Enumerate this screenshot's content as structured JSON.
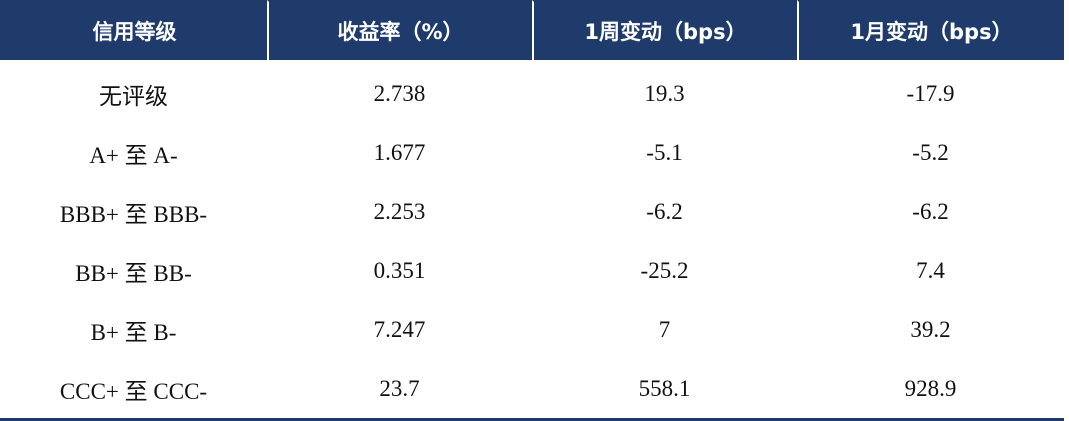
{
  "table": {
    "headers": [
      "信用等级",
      "收益率（%）",
      "1周变动（bps）",
      "1月变动（bps）"
    ],
    "rows": [
      {
        "grade": "无评级",
        "yield": "2.738",
        "week_change": "19.3",
        "month_change": "-17.9"
      },
      {
        "grade": "A+ 至 A-",
        "yield": "1.677",
        "week_change": "-5.1",
        "month_change": "-5.2"
      },
      {
        "grade": "BBB+ 至 BBB-",
        "yield": "2.253",
        "week_change": "-6.2",
        "month_change": "-6.2"
      },
      {
        "grade": "BB+ 至 BB-",
        "yield": "0.351",
        "week_change": "-25.2",
        "month_change": "7.4"
      },
      {
        "grade": "B+ 至 B-",
        "yield": "7.247",
        "week_change": "7",
        "month_change": "39.2"
      },
      {
        "grade": "CCC+ 至 CCC-",
        "yield": "23.7",
        "week_change": "558.1",
        "month_change": "928.9"
      }
    ]
  },
  "colors": {
    "header_background": "#1f3b6b",
    "header_text": "#ffffff",
    "body_text": "#111111"
  }
}
